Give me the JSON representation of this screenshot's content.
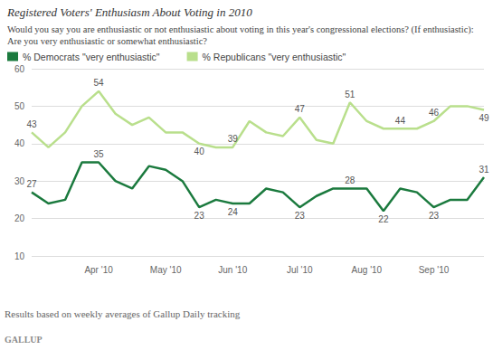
{
  "chart_data": {
    "type": "line",
    "title": "Registered Voters' Enthusiasm About Voting in 2010",
    "subtitle": "Would you say you are enthusiastic or not enthusiastic about voting in this year's congressional elections? (If enthusiastic): Are you very enthusiastic or somewhat enthusiastic?",
    "annotations": [
      "Results based on weekly averages of Gallup Daily tracking",
      "GALLUP"
    ],
    "categories": [
      null,
      null,
      null,
      null,
      "Apr '10",
      null,
      null,
      null,
      "May '10",
      null,
      null,
      null,
      "Jun '10",
      null,
      null,
      null,
      "Jul '10",
      null,
      null,
      null,
      "Aug '10",
      null,
      null,
      null,
      "Sep '10",
      null,
      null,
      null
    ],
    "series": [
      {
        "name": "% Democrats \"very enthusiastic\"",
        "color": "#1b7a3e",
        "values": [
          27,
          24,
          25,
          35,
          35,
          30,
          28,
          34,
          33,
          30,
          23,
          25,
          24,
          24,
          28,
          27,
          23,
          26,
          28,
          28,
          28,
          22,
          28,
          27,
          23,
          25,
          25,
          31
        ],
        "value_labels": [
          "27",
          null,
          null,
          null,
          "35",
          null,
          null,
          null,
          null,
          null,
          "23",
          null,
          "24",
          null,
          null,
          null,
          "23",
          null,
          null,
          "28",
          null,
          "22",
          null,
          null,
          "23",
          null,
          null,
          "31"
        ]
      },
      {
        "name": "% Republicans \"very enthusiastic\"",
        "color": "#b9df8c",
        "values": [
          43,
          39,
          43,
          50,
          54,
          48,
          45,
          47,
          43,
          43,
          40,
          39,
          39,
          46,
          43,
          42,
          47,
          41,
          40,
          51,
          46,
          44,
          44,
          44,
          46,
          50,
          50,
          49
        ],
        "value_labels": [
          "43",
          null,
          null,
          null,
          "54",
          null,
          null,
          null,
          null,
          null,
          "40",
          null,
          "39",
          null,
          null,
          null,
          "47",
          null,
          null,
          "51",
          null,
          null,
          "44",
          null,
          "46",
          null,
          null,
          "49"
        ]
      }
    ],
    "ylim": [
      10,
      60
    ],
    "yticks": [
      10,
      20,
      30,
      40,
      50,
      60
    ],
    "grid": true,
    "legend": "top-left"
  }
}
